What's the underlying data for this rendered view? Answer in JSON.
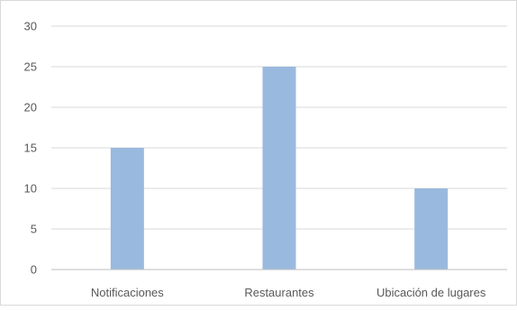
{
  "chart_data": {
    "type": "bar",
    "categories": [
      "Notificaciones",
      "Restaurantes",
      "Ubicación de lugares"
    ],
    "values": [
      15,
      25,
      10
    ],
    "title": "",
    "xlabel": "",
    "ylabel": "",
    "ylim": [
      0,
      30
    ],
    "yticks": [
      "0",
      "5",
      "10",
      "15",
      "20",
      "25",
      "30"
    ],
    "grid": true,
    "legend": "none",
    "bar_color": "#9ab9de",
    "grid_color": "#d9d9d9",
    "axis_color": "#bfbfbf"
  }
}
